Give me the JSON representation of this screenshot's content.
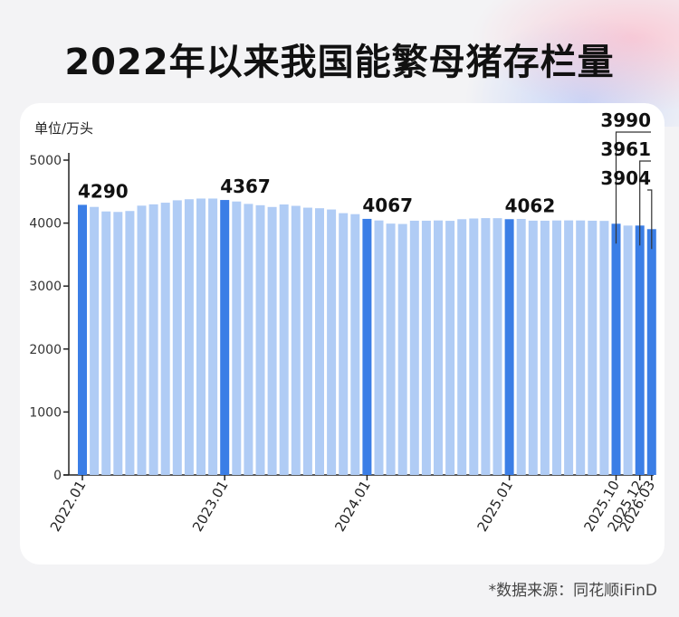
{
  "title": "2022年以来我国能繁母猪存栏量",
  "unit_label": "单位/万头",
  "source": "*数据来源：同花顺iFinD",
  "colors": {
    "highlight": "#3b7ee6",
    "normal": "#b0ccf5",
    "axis": "#222222"
  },
  "chart_data": {
    "type": "bar",
    "title": "2022年以来我国能繁母猪存栏量",
    "ylabel": "单位/万头",
    "ylim": [
      0,
      5000
    ],
    "yticks": [
      0,
      1000,
      2000,
      3000,
      4000,
      5000
    ],
    "x_tick_labels": [
      "2022.01",
      "2023.01",
      "2024.01",
      "2025.01",
      "2025.10",
      "2025.12",
      "2026.03"
    ],
    "categories": [
      "2022.01",
      "2022.02",
      "2022.03",
      "2022.04",
      "2022.05",
      "2022.06",
      "2022.07",
      "2022.08",
      "2022.09",
      "2022.10",
      "2022.11",
      "2022.12",
      "2023.01",
      "2023.02",
      "2023.03",
      "2023.04",
      "2023.05",
      "2023.06",
      "2023.07",
      "2023.08",
      "2023.09",
      "2023.10",
      "2023.11",
      "2023.12",
      "2024.01",
      "2024.02",
      "2024.03",
      "2024.04",
      "2024.05",
      "2024.06",
      "2024.07",
      "2024.08",
      "2024.09",
      "2024.10",
      "2024.11",
      "2024.12",
      "2025.01",
      "2025.02",
      "2025.03",
      "2025.04",
      "2025.05",
      "2025.06",
      "2025.07",
      "2025.08",
      "2025.09",
      "2025.10",
      "2025.11",
      "2025.12",
      "2026.03"
    ],
    "values": [
      4290,
      4257,
      4185,
      4177,
      4192,
      4277,
      4298,
      4324,
      4362,
      4379,
      4390,
      4390,
      4367,
      4343,
      4305,
      4284,
      4256,
      4296,
      4274,
      4245,
      4236,
      4216,
      4158,
      4142,
      4067,
      4042,
      3992,
      3986,
      4038,
      4038,
      4042,
      4036,
      4062,
      4073,
      4079,
      4078,
      4062,
      4066,
      4039,
      4038,
      4042,
      4043,
      4042,
      4038,
      4035,
      3990,
      3961,
      3961,
      3904
    ],
    "highlight": [
      "2022.01",
      "2023.01",
      "2024.01",
      "2025.01",
      "2025.10",
      "2025.12",
      "2026.03"
    ],
    "annotations": [
      {
        "x": "2022.01",
        "label": "4290"
      },
      {
        "x": "2023.01",
        "label": "4367"
      },
      {
        "x": "2024.01",
        "label": "4067"
      },
      {
        "x": "2025.01",
        "label": "4062"
      },
      {
        "x": "2025.10",
        "label": "3990"
      },
      {
        "x": "2025.12",
        "label": "3961"
      },
      {
        "x": "2026.03",
        "label": "3904"
      }
    ],
    "grid": false
  }
}
